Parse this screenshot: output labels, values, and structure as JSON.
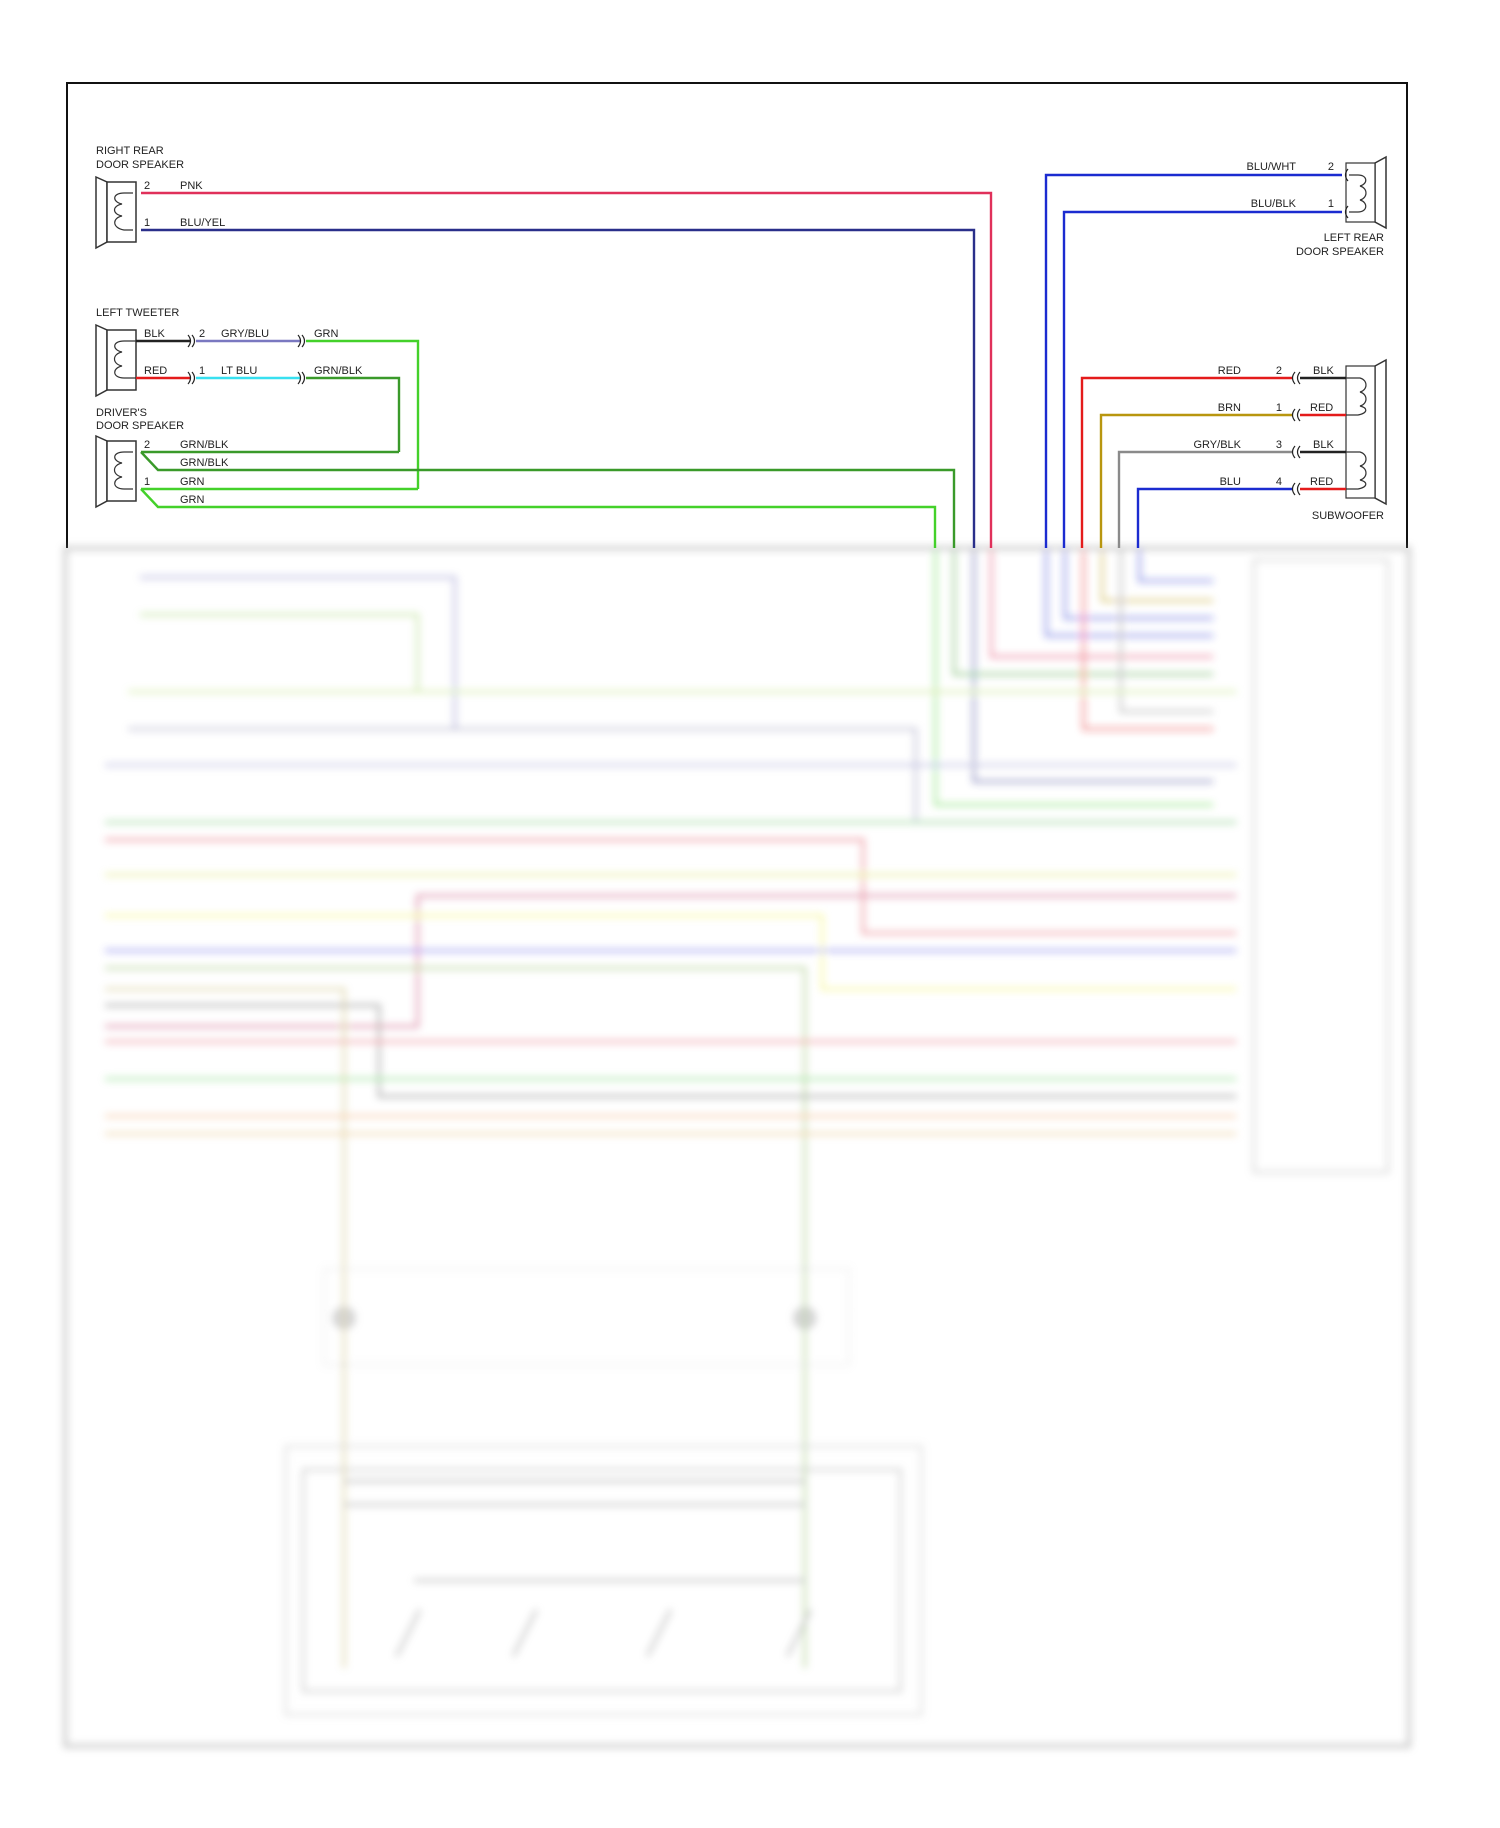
{
  "components": {
    "right_rear": {
      "line1": "RIGHT REAR",
      "line2": "DOOR SPEAKER"
    },
    "left_tweeter": {
      "line1": "LEFT TWEETER"
    },
    "drivers": {
      "line1": "DRIVER'S",
      "line2": "DOOR SPEAKER"
    },
    "left_rear": {
      "line1": "LEFT REAR",
      "line2": "DOOR SPEAKER"
    },
    "subwoofer": {
      "line1": "SUBWOOFER"
    }
  },
  "wires": {
    "rr_pin2": "2",
    "rr_w2": "PNK",
    "rr_pin1": "1",
    "rr_w1": "BLU/YEL",
    "lt_blk": "BLK",
    "lt_pin2": "2",
    "lt_w2": "GRY/BLU",
    "lt_w2b": "GRN",
    "lt_red": "RED",
    "lt_pin1": "1",
    "lt_w1": "LT BLU",
    "lt_w1b": "GRN/BLK",
    "dr_pin2": "2",
    "dr_w2a": "GRN/BLK",
    "dr_w2b": "GRN/BLK",
    "dr_pin1": "1",
    "dr_w1a": "GRN",
    "dr_w1b": "GRN",
    "lr_w2": "BLU/WHT",
    "lr_pin2": "2",
    "lr_w1": "BLU/BLK",
    "lr_pin1": "1",
    "sw_w2": "RED",
    "sw_pin2": "2",
    "sw_s2": "BLK",
    "sw_w1": "BRN",
    "sw_pin1": "1",
    "sw_s1": "RED",
    "sw_w3": "GRY/BLK",
    "sw_pin3": "3",
    "sw_s3": "BLK",
    "sw_w4": "BLU",
    "sw_pin4": "4",
    "sw_s4": "RED"
  },
  "colors": {
    "pnk": "#e0305a",
    "blu_yel": "#2a2f8a",
    "blu": "#1b2bd0",
    "grn": "#44d12a",
    "grn_blk": "#3a9a2a",
    "red": "#e41b1b",
    "brn": "#b8960f",
    "gry": "#8a8a8a",
    "gry_blu": "#7a78c0",
    "lt_blu": "#38e0f0",
    "blk": "#222222"
  }
}
